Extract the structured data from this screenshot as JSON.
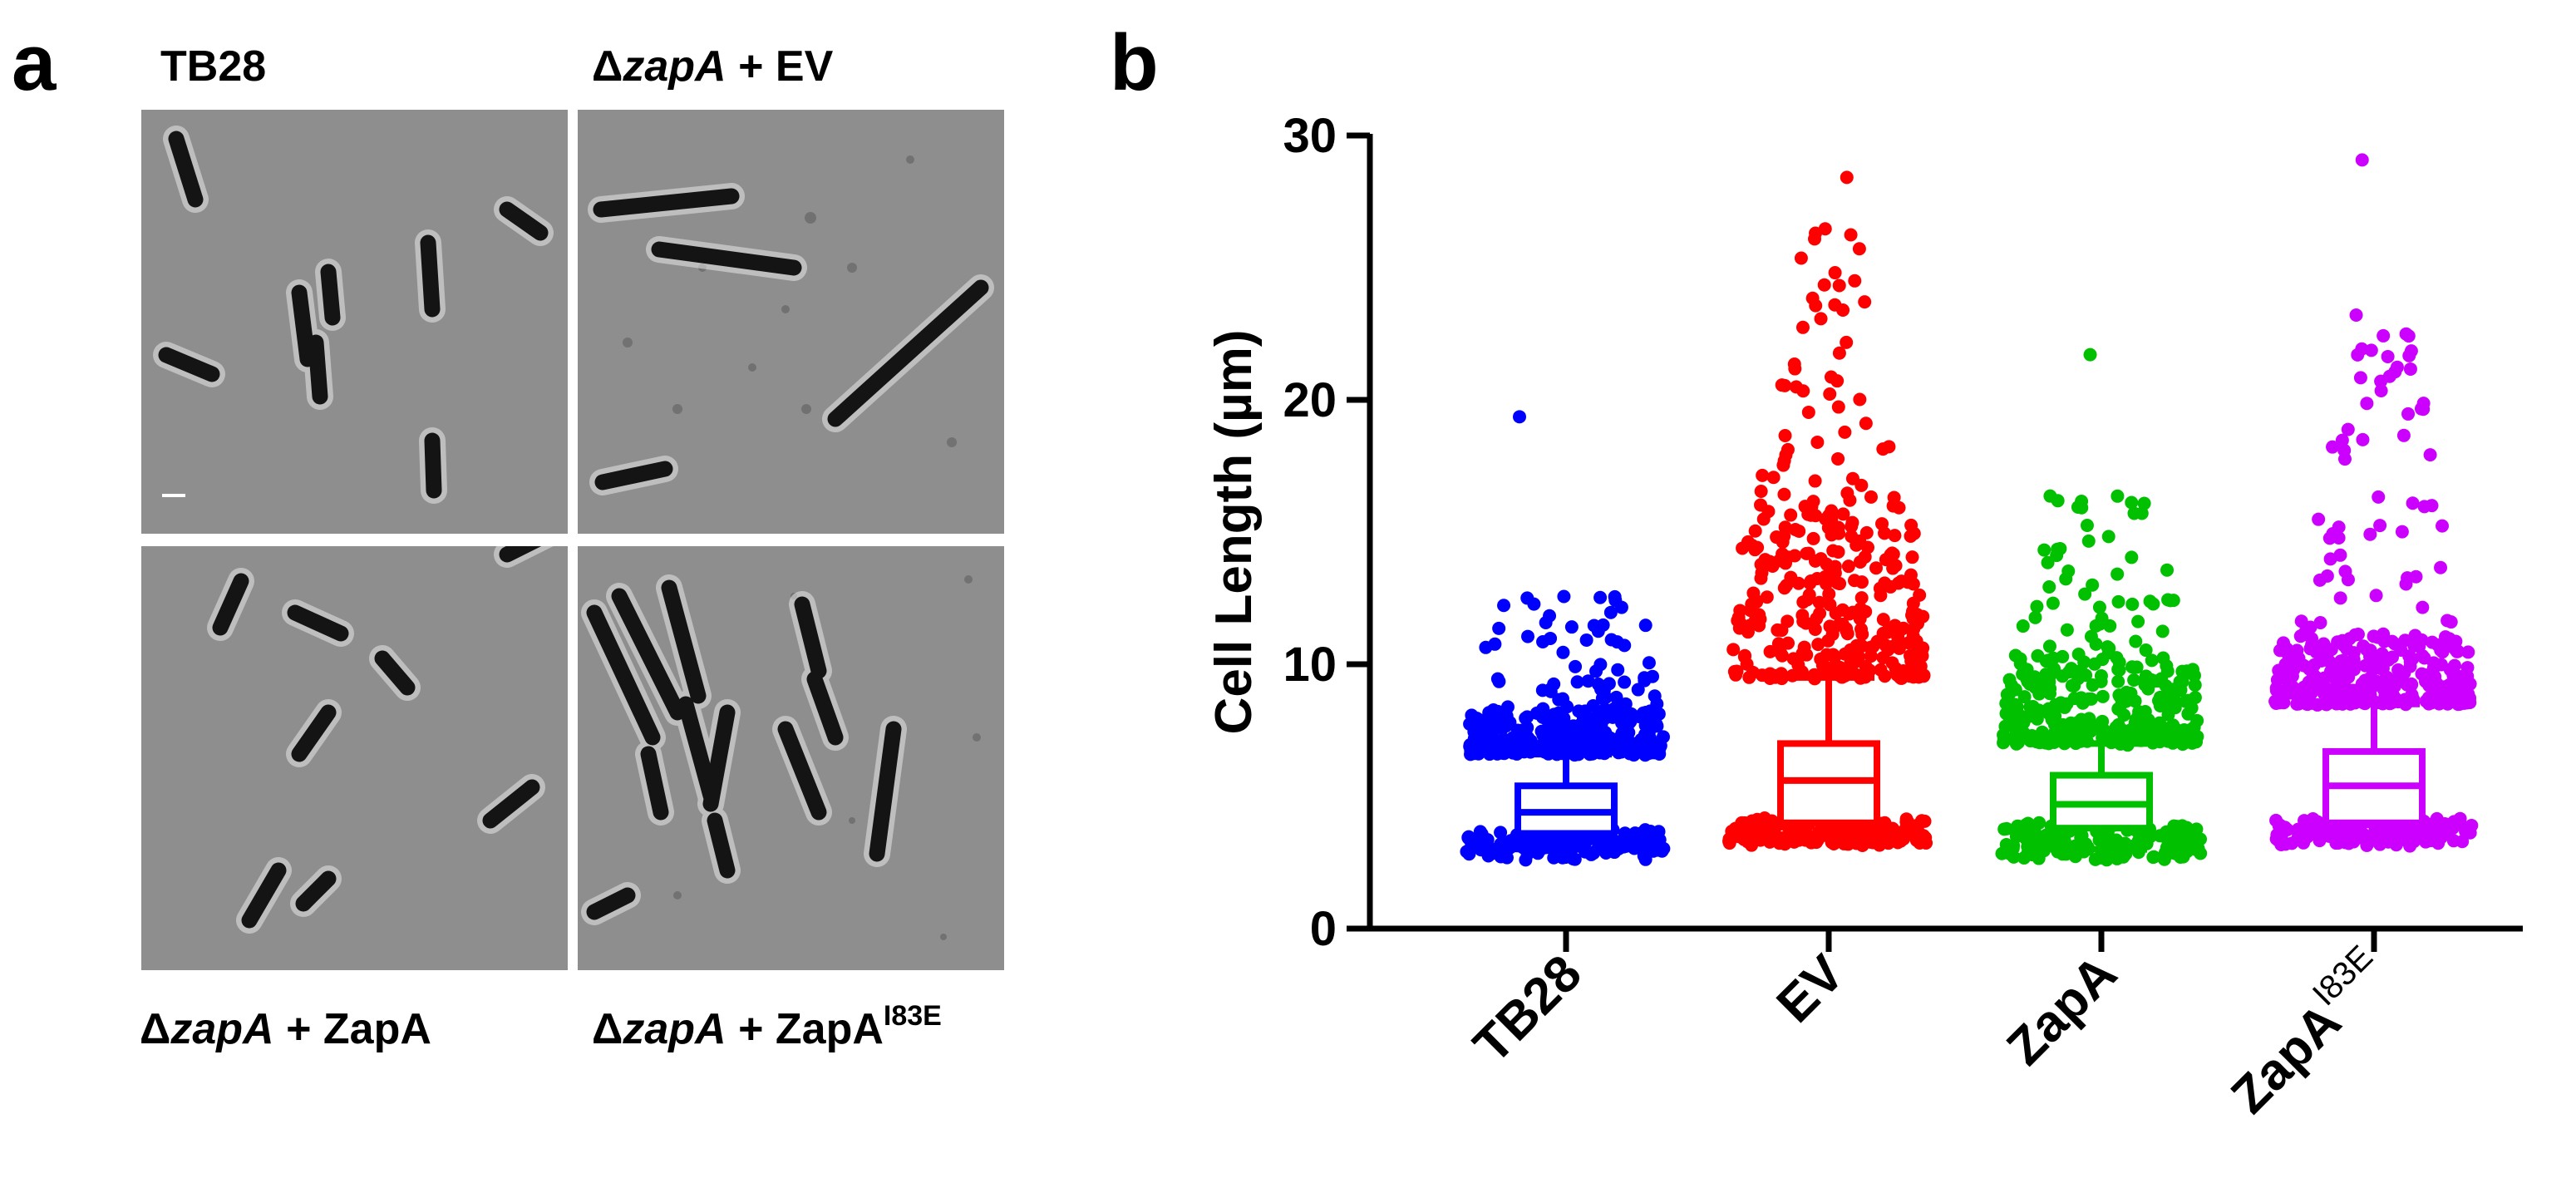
{
  "panel_a": {
    "letter": "a",
    "panels": [
      {
        "label_prefix": "",
        "label_italic": "",
        "label_suffix": "TB28",
        "label_sup": "",
        "scale_bar": true
      },
      {
        "label_prefix": "Δ",
        "label_italic": "zapA",
        "label_suffix": " + EV",
        "label_sup": "",
        "scale_bar": false
      },
      {
        "label_prefix": "Δ",
        "label_italic": "zapA",
        "label_suffix": " + ZapA",
        "label_sup": "",
        "scale_bar": false
      },
      {
        "label_prefix": "Δ",
        "label_italic": "zapA",
        "label_suffix": " + ZapA",
        "label_sup": "I83E",
        "scale_bar": false
      }
    ],
    "colors": {
      "background": "#8e8e8e",
      "cell": "#141414",
      "halo": "#e8e8e8"
    }
  },
  "panel_b": {
    "letter": "b"
  },
  "chart_data": {
    "type": "box-scatter",
    "ylabel": "Cell Length (µm)",
    "ylim": [
      0,
      30
    ],
    "yticks": [
      0,
      10,
      20,
      30
    ],
    "categories": [
      "TB28",
      "EV",
      "ZapA",
      "ZapA"
    ],
    "category_sup": [
      "",
      "",
      "",
      "I83E"
    ],
    "series": [
      {
        "category": "TB28",
        "color": "#0000ff",
        "whisker_low": 3.0,
        "q1": 3.6,
        "median": 4.4,
        "q3": 5.4,
        "whisker_high": 6.6,
        "max": 19.3,
        "upper_dense": 8.2,
        "upper_sparse": 12.8
      },
      {
        "category": "EV",
        "color": "#ff0000",
        "whisker_low": 3.6,
        "q1": 4.0,
        "median": 5.6,
        "q3": 7.0,
        "whisker_high": 9.5,
        "max": 28.4,
        "upper_dense": 15.5,
        "upper_sparse": 26.5
      },
      {
        "category": "ZapA",
        "color": "#00c000",
        "whisker_low": 3.0,
        "q1": 3.8,
        "median": 4.7,
        "q3": 5.8,
        "whisker_high": 7.0,
        "max": 21.7,
        "upper_dense": 10.0,
        "upper_sparse": 16.4
      },
      {
        "category": "ZapA I83E",
        "color": "#cc00ff",
        "whisker_low": 3.6,
        "q1": 4.0,
        "median": 5.4,
        "q3": 6.7,
        "whisker_high": 8.5,
        "max": 29.1,
        "upper_dense": 11.0,
        "upper_sparse": 23.2
      }
    ],
    "grid": false,
    "legend": "none"
  }
}
